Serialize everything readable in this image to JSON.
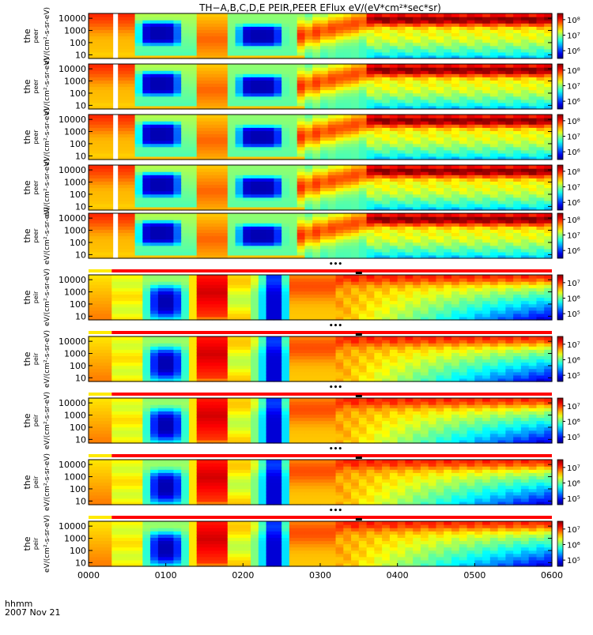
{
  "title": "TH−A,B,C,D,E PEIR,PEER EFlux eV/(eV*cm²*sec*sr)",
  "chart_data": {
    "type": "heatmap",
    "title": "TH−A,B,C,D,E PEIR,PEER EFlux eV/(eV*cm²*sec*sr)",
    "time_label_line1": "hhmm",
    "time_label_line2": "2007 Nov 21",
    "x_ticks": [
      "0000",
      "0100",
      "0200",
      "0300",
      "0400",
      "0500",
      "0600"
    ],
    "xlim_hours": [
      0,
      6
    ],
    "y_ticks": [
      "10",
      "100",
      "1000",
      "10000"
    ],
    "ylim_energy_eV": [
      5,
      25000
    ],
    "panels": [
      {
        "species": "electrons",
        "ylabel_main": "the",
        "ylabel_sup": "peer",
        "ylabel_units": "eV/(cm²-s-sr-eV)",
        "cbar_ticks": [
          "10⁸",
          "10⁷",
          "10⁶"
        ],
        "cbar_exponents": [
          8,
          7,
          6
        ],
        "clim_exp": [
          5.5,
          8.4
        ]
      },
      {
        "species": "electrons",
        "ylabel_main": "the",
        "ylabel_sup": "peer",
        "ylabel_units": "eV/(cm²-s-sr-eV)",
        "cbar_ticks": [
          "10⁸",
          "10⁷",
          "10⁶"
        ],
        "cbar_exponents": [
          8,
          7,
          6
        ],
        "clim_exp": [
          5.5,
          8.4
        ]
      },
      {
        "species": "electrons",
        "ylabel_main": "the",
        "ylabel_sup": "peer",
        "ylabel_units": "eV/(cm²-s-sr-eV)",
        "cbar_ticks": [
          "10⁸",
          "10⁷",
          "10⁶"
        ],
        "cbar_exponents": [
          8,
          7,
          6
        ],
        "clim_exp": [
          5.5,
          8.4
        ]
      },
      {
        "species": "electrons",
        "ylabel_main": "the",
        "ylabel_sup": "peer",
        "ylabel_units": "eV/(cm²-s-sr-eV)",
        "cbar_ticks": [
          "10⁸",
          "10⁷",
          "10⁶"
        ],
        "cbar_exponents": [
          8,
          7,
          6
        ],
        "clim_exp": [
          5.5,
          8.4
        ]
      },
      {
        "species": "electrons",
        "ylabel_main": "the",
        "ylabel_sup": "peer",
        "ylabel_units": "eV/(cm²-s-sr-eV)",
        "cbar_ticks": [
          "10⁸",
          "10⁷",
          "10⁶"
        ],
        "cbar_exponents": [
          8,
          7,
          6
        ],
        "clim_exp": [
          5.5,
          8.4
        ]
      },
      {
        "species": "ions",
        "ylabel_main": "the",
        "ylabel_sup": "peir",
        "ylabel_units": "eV/(cm²-s-sr-eV)",
        "cbar_ticks": [
          "10⁷",
          "10⁶",
          "10⁵"
        ],
        "cbar_exponents": [
          7,
          6,
          5
        ],
        "clim_exp": [
          4.6,
          7.5
        ]
      },
      {
        "species": "ions",
        "ylabel_main": "the",
        "ylabel_sup": "peir",
        "ylabel_units": "eV/(cm²-s-sr-eV)",
        "cbar_ticks": [
          "10⁷",
          "10⁶",
          "10⁵"
        ],
        "cbar_exponents": [
          7,
          6,
          5
        ],
        "clim_exp": [
          4.6,
          7.5
        ]
      },
      {
        "species": "ions",
        "ylabel_main": "the",
        "ylabel_sup": "peir",
        "ylabel_units": "eV/(cm²-s-sr-eV)",
        "cbar_ticks": [
          "10⁷",
          "10⁶",
          "10⁵"
        ],
        "cbar_exponents": [
          7,
          6,
          5
        ],
        "clim_exp": [
          4.6,
          7.5
        ]
      },
      {
        "species": "ions",
        "ylabel_main": "the",
        "ylabel_sup": "peir",
        "ylabel_units": "eV/(cm²-s-sr-eV)",
        "cbar_ticks": [
          "10⁷",
          "10⁶",
          "10⁵"
        ],
        "cbar_exponents": [
          7,
          6,
          5
        ],
        "clim_exp": [
          4.6,
          7.5
        ]
      },
      {
        "species": "ions",
        "ylabel_main": "the",
        "ylabel_sup": "peir",
        "ylabel_units": "eV/(cm²-s-sr-eV)",
        "cbar_ticks": [
          "10⁷",
          "10⁶",
          "10⁵"
        ],
        "cbar_exponents": [
          7,
          6,
          5
        ],
        "clim_exp": [
          4.6,
          7.5
        ]
      }
    ],
    "status_bar": {
      "segments": [
        {
          "from_hour": 0.0,
          "to_hour": 0.3,
          "color": "#ffea00"
        },
        {
          "from_hour": 0.3,
          "to_hour": 6.0,
          "color": "#ff0000"
        }
      ],
      "marker_dots_hour": 3.2,
      "marker_bar_hour": 3.5
    },
    "data_gap_electrons_hour": 0.35,
    "electron_features": [
      {
        "name": "energetic blob 1",
        "from_hour": 0.6,
        "to_hour": 1.3
      },
      {
        "name": "energetic blob 2",
        "from_hour": 1.85,
        "to_hour": 2.6
      },
      {
        "name": "dense plasma band",
        "from_hour": 1.4,
        "to_hour": 1.75
      },
      {
        "name": "boundary crossing",
        "at_hour": 2.9
      }
    ],
    "ion_features": [
      {
        "name": "low-flux pocket 1",
        "from_hour": 0.8,
        "to_hour": 1.25
      },
      {
        "name": "hot band",
        "from_hour": 1.5,
        "to_hour": 1.85
      },
      {
        "name": "low-flux stripe",
        "from_hour": 2.2,
        "to_hour": 2.6
      }
    ]
  },
  "colors": {
    "background": "#ffffff",
    "axis": "#000000",
    "status_yellow": "#ffea00",
    "status_red": "#ff0000"
  }
}
